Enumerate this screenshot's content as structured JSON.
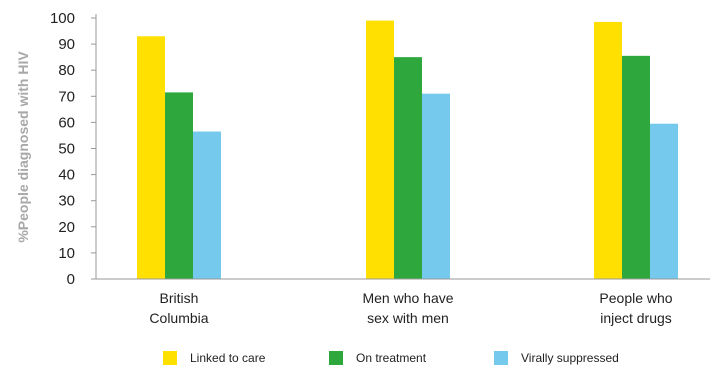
{
  "chart_data": {
    "type": "bar",
    "categories": [
      [
        "British",
        "Columbia"
      ],
      [
        "Men who have",
        "sex with men"
      ],
      [
        "People who",
        "inject drugs"
      ]
    ],
    "series": [
      {
        "name": "Linked to care",
        "color": "#ffe000",
        "values": [
          93,
          99,
          98.5
        ]
      },
      {
        "name": "On treatment",
        "color": "#2ea83c",
        "values": [
          71.5,
          85,
          85.5
        ]
      },
      {
        "name": "Virally suppressed",
        "color": "#74c9ec",
        "values": [
          56.5,
          71,
          59.5
        ]
      }
    ],
    "ylabel": "%People diagnosed with HIV",
    "xlabel": "",
    "ylim": [
      0,
      100
    ],
    "yticks": [
      0,
      10,
      20,
      30,
      40,
      50,
      60,
      70,
      80,
      90,
      100
    ],
    "grid": false,
    "legend_position": "bottom"
  }
}
